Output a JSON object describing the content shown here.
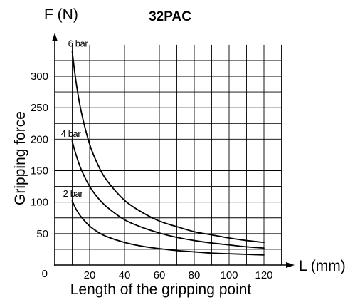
{
  "chart_data": {
    "type": "line",
    "title": "32PAC",
    "xlabel": "Length of the gripping point",
    "xunit_label": "L (mm)",
    "ylabel": "Gripping force",
    "yunit_label": "F (N)",
    "origin_label": "0",
    "xlim": [
      0,
      130
    ],
    "ylim": [
      0,
      350
    ],
    "x_ticks": [
      20,
      40,
      60,
      80,
      100,
      120
    ],
    "y_ticks": [
      50,
      100,
      150,
      200,
      250,
      300
    ],
    "grid": true,
    "grid_step": {
      "x": 10,
      "y": 25
    },
    "x": [
      10,
      12,
      15,
      20,
      25,
      30,
      40,
      50,
      60,
      70,
      80,
      90,
      100,
      110,
      120
    ],
    "series": [
      {
        "name": "6 bar",
        "values": [
          340,
          295,
          246,
          192,
          158,
          134,
          103,
          84,
          70,
          61,
          53,
          48,
          43,
          39,
          36
        ]
      },
      {
        "name": "4 bar",
        "values": [
          197,
          177,
          153,
          125,
          106,
          92,
          72,
          60,
          51,
          44,
          39,
          35,
          32,
          29,
          27
        ]
      },
      {
        "name": "2 bar",
        "values": [
          102,
          90,
          77,
          62,
          52,
          45,
          36,
          30,
          26,
          23,
          21,
          19,
          18,
          17,
          16
        ]
      }
    ]
  }
}
